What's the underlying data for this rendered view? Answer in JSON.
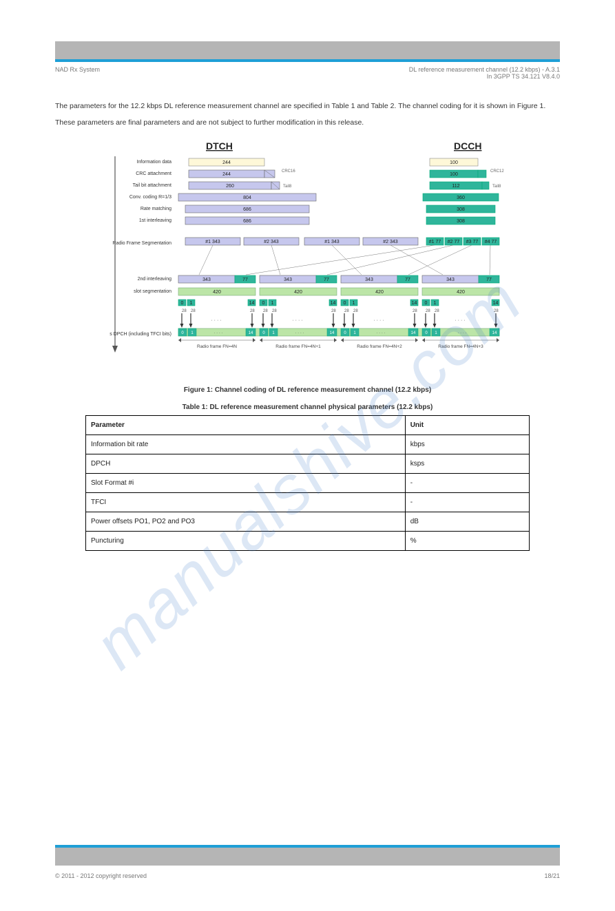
{
  "header": {
    "left": "NAD Rx System",
    "right": "DL reference measurement channel (12.2 kbps) - A.3.1\nIn 3GPP TS 34.121 V8.4.0"
  },
  "intro": "The parameters for the 12.2 kbps DL reference measurement channel are specified in Table 1 and Table 2. The channel coding for it is shown in Figure 1.",
  "note": "These parameters are final parameters and are not subject to further modification in this release.",
  "fig1_caption": "Figure 1: Channel coding of DL reference measurement channel (12.2 kbps)",
  "diagram": {
    "left_heading": "DTCH",
    "right_heading": "DCCH",
    "row_labels": [
      "Information data",
      "CRC attachment",
      "Tail bit attachment",
      "Conv. coding R=1/3",
      "Rate matching",
      "1st interleaving",
      "Radio Frame Segmentation",
      "2nd interleaving",
      "slot segmentation",
      "30ksps DPCH (including TFCI bits)"
    ],
    "dtch": {
      "info": 244,
      "crc": "244",
      "crc_extra": "",
      "tail": 260,
      "conv": 804,
      "rate": 686,
      "inter": 686,
      "info_color": "#fef8d8",
      "block_color": "#c6c7ed",
      "seg": "#1 343",
      "seg2": "#2 343"
    },
    "dcch": {
      "info": 100,
      "crc": "100",
      "crc_extra": "",
      "tail": 112,
      "conv": 360,
      "rate": 308,
      "inter": 308,
      "info_color": "#fef8d8",
      "block_color": "#2fb59b",
      "seg1": "#1 77",
      "seg2": "#2 77",
      "seg3": "#3 77",
      "seg4": "#4 77"
    },
    "second_row": {
      "val1": 343,
      "val2": 77,
      "slot": 420,
      "slot_color": "#bce5a7",
      "marker_color": "#2fb59b"
    },
    "bottom_labels": [
      "Radio frame FN=4N",
      "Radio frame FN=4N+1",
      "Radio frame FN=4N+2",
      "Radio frame FN=4N+3"
    ],
    "slotbits": [
      "0",
      "1",
      "14"
    ],
    "slotnum": [
      "28",
      "28",
      "28"
    ]
  },
  "table1_caption": "Table 1: DL reference measurement channel physical parameters (12.2 kbps)",
  "t1": {
    "h1": "Parameter",
    "h2": "Unit",
    "r": [
      [
        "Information bit rate",
        "kbps"
      ],
      [
        "DPCH",
        "ksps"
      ],
      [
        "Slot Format #i",
        "-"
      ],
      [
        "TFCI",
        "-"
      ],
      [
        "Power offsets PO1, PO2 and PO3",
        "dB"
      ],
      [
        "Puncturing",
        "%"
      ]
    ]
  },
  "footer": {
    "left": "© 2011 - 2012 copyright reserved",
    "right": "18/21"
  }
}
